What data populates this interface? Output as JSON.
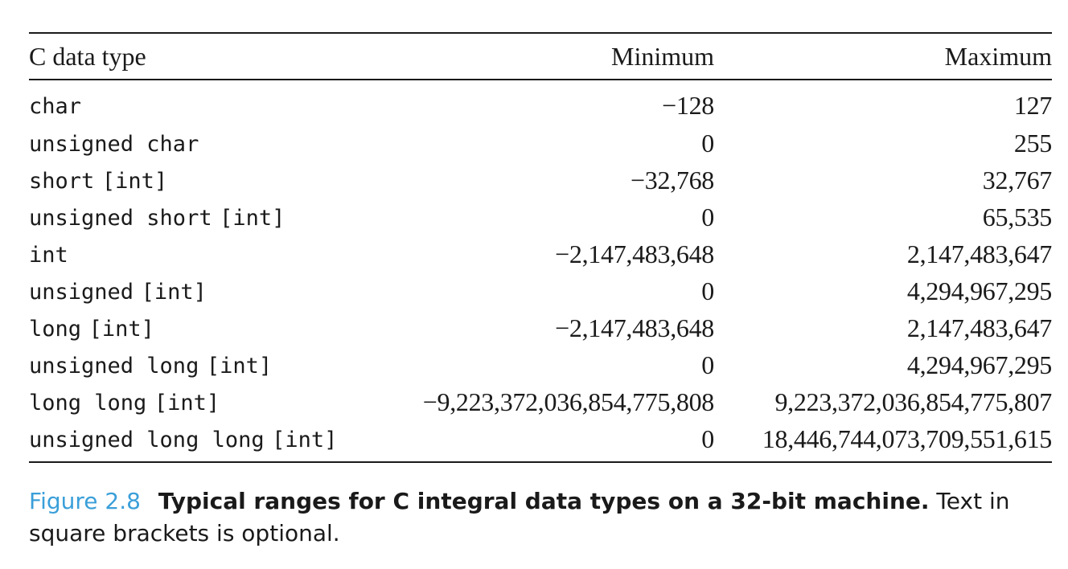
{
  "table": {
    "headers": [
      "C data type",
      "Minimum",
      "Maximum"
    ],
    "rows": [
      {
        "type": "char",
        "opt": "",
        "min": "−128",
        "max": "127"
      },
      {
        "type": "unsigned char",
        "opt": "",
        "min": "0",
        "max": "255"
      },
      {
        "type": "short",
        "opt": "[int]",
        "min": "−32,768",
        "max": "32,767"
      },
      {
        "type": "unsigned short",
        "opt": "[int]",
        "min": "0",
        "max": "65,535"
      },
      {
        "type": "int",
        "opt": "",
        "min": "−2,147,483,648",
        "max": "2,147,483,647"
      },
      {
        "type": "unsigned",
        "opt": "[int]",
        "min": "0",
        "max": "4,294,967,295"
      },
      {
        "type": "long",
        "opt": "[int]",
        "min": "−2,147,483,648",
        "max": "2,147,483,647"
      },
      {
        "type": "unsigned long",
        "opt": "[int]",
        "min": "0",
        "max": "4,294,967,295"
      },
      {
        "type": "long long",
        "opt": "[int]",
        "min": "−9,223,372,036,854,775,808",
        "max": "9,223,372,036,854,775,807"
      },
      {
        "type": "unsigned long long",
        "opt": "[int]",
        "min": "0",
        "max": "18,446,744,073,709,551,615"
      }
    ]
  },
  "caption": {
    "label": "Figure 2.8",
    "title": "Typical ranges for C integral data types on a 32-bit machine.",
    "text": "Text in square brackets is optional.",
    "label_color": "#3a9fd9"
  }
}
